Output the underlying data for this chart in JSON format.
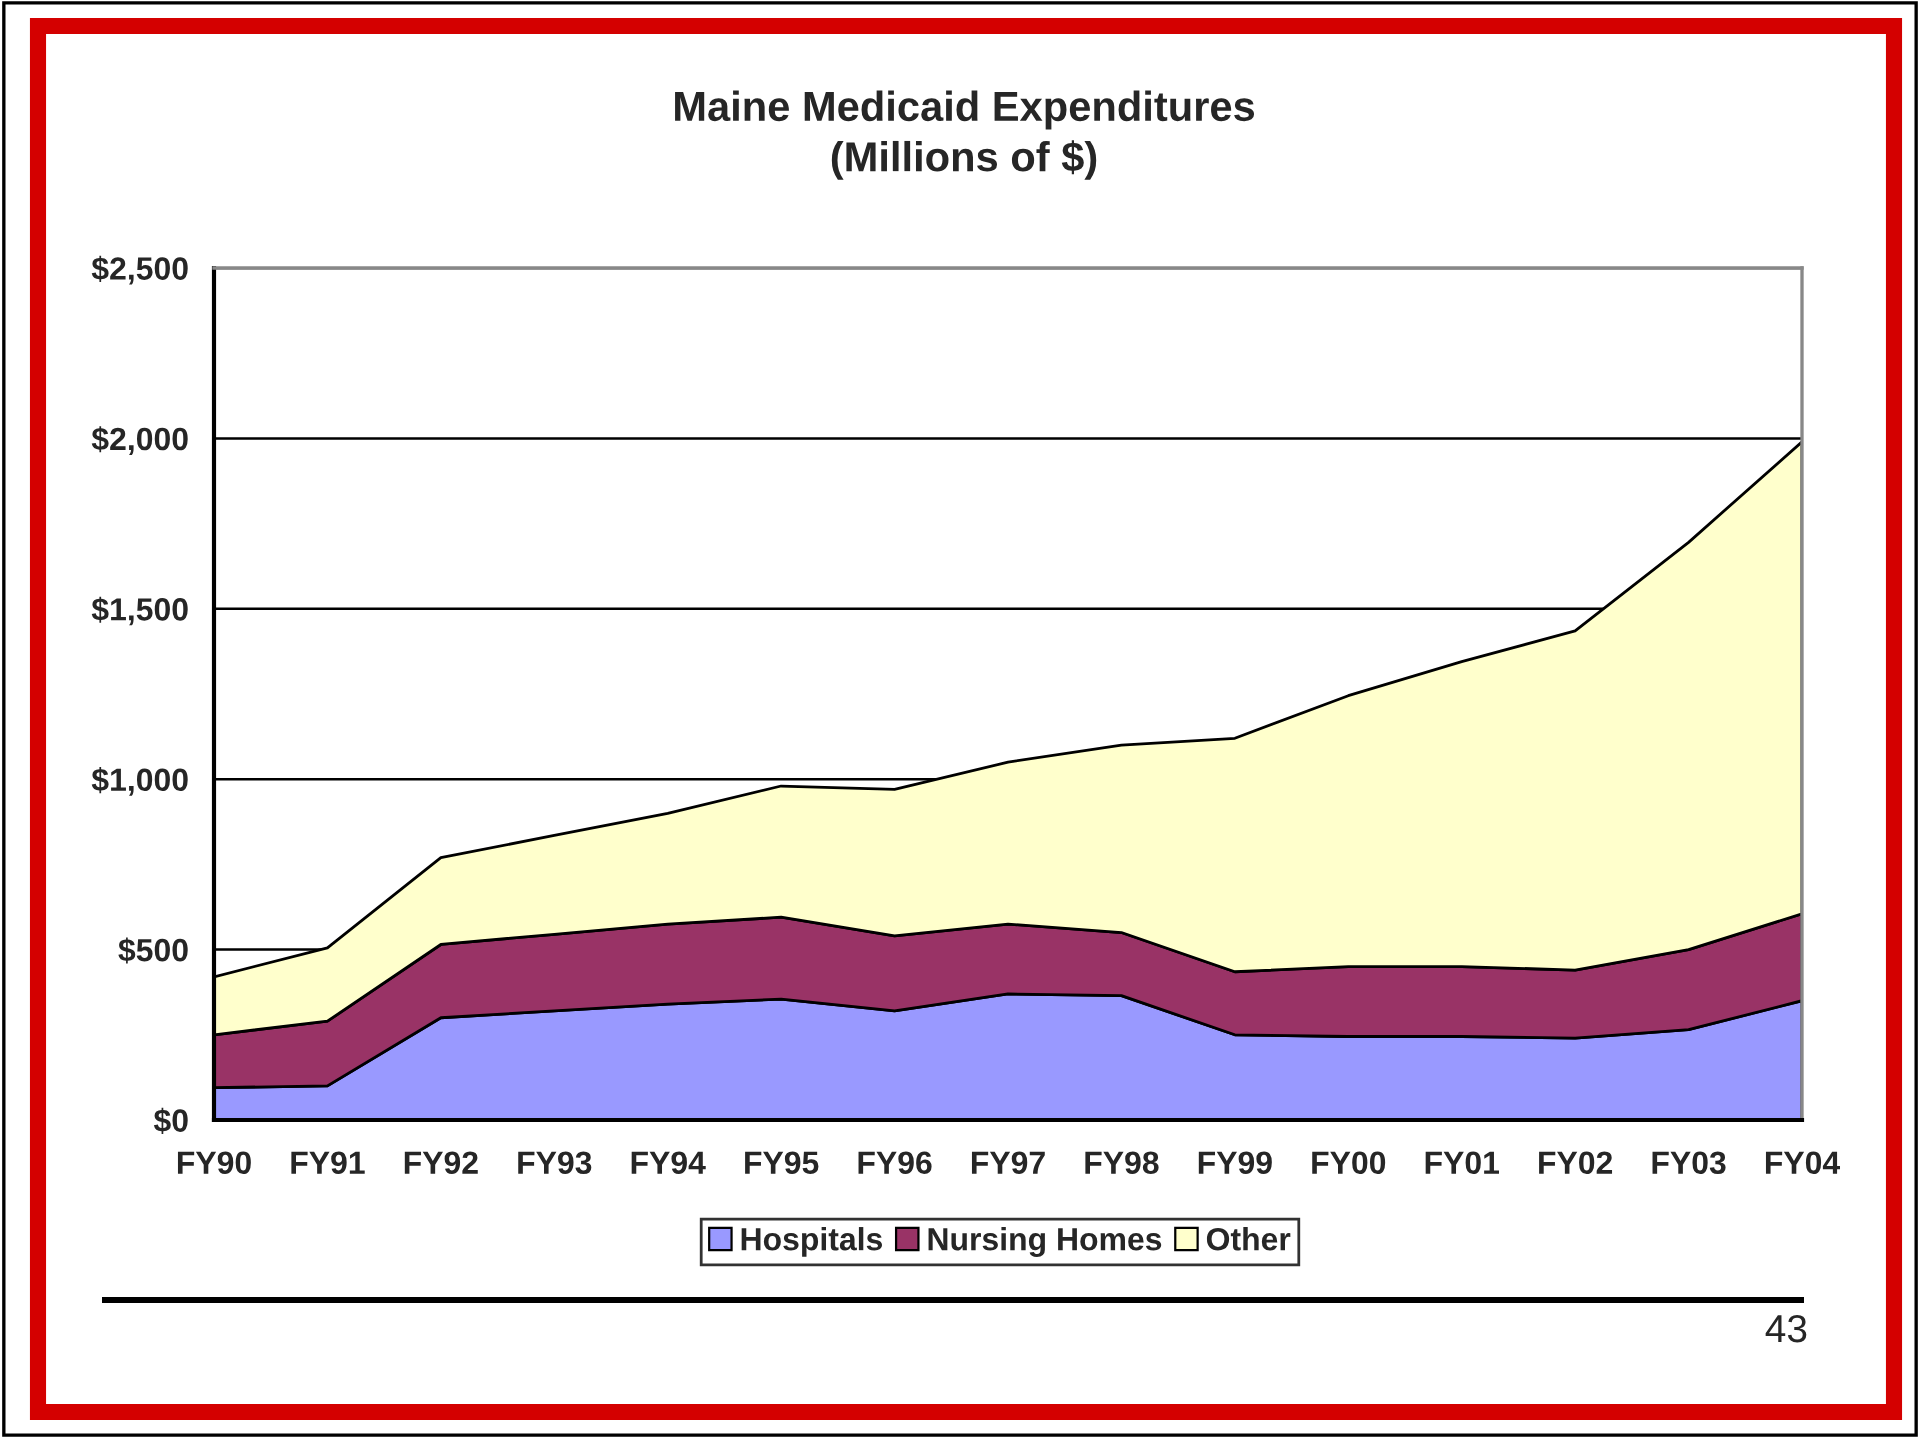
{
  "chart_data": {
    "type": "area",
    "title": "Maine Medicaid Expenditures",
    "subtitle": "(Millions of $)",
    "categories": [
      "FY90",
      "FY91",
      "FY92",
      "FY93",
      "FY94",
      "FY95",
      "FY96",
      "FY97",
      "FY98",
      "FY99",
      "FY00",
      "FY01",
      "FY02",
      "FY03",
      "FY04"
    ],
    "series": [
      {
        "name": "Hospitals",
        "color": "#9999ff",
        "values": [
          95,
          100,
          300,
          320,
          340,
          355,
          320,
          370,
          365,
          250,
          245,
          245,
          240,
          265,
          350
        ]
      },
      {
        "name": "Nursing Homes",
        "color": "#993366",
        "values": [
          155,
          190,
          215,
          225,
          235,
          240,
          220,
          205,
          185,
          185,
          205,
          205,
          200,
          235,
          255
        ]
      },
      {
        "name": "Other",
        "color": "#ffffcc",
        "values": [
          170,
          215,
          255,
          290,
          325,
          385,
          430,
          475,
          550,
          685,
          795,
          895,
          995,
          1195,
          1385
        ]
      }
    ],
    "stacked": true,
    "ylim": [
      0,
      2500
    ],
    "yticks": [
      {
        "value": 0,
        "label": "$0"
      },
      {
        "value": 500,
        "label": "$500"
      },
      {
        "value": 1000,
        "label": "$1,000"
      },
      {
        "value": 1500,
        "label": "$1,500"
      },
      {
        "value": 2000,
        "label": "$2,000"
      },
      {
        "value": 2500,
        "label": "$2,500"
      }
    ],
    "grid": "y",
    "legend": "bottom",
    "annotations": [
      "43"
    ]
  }
}
